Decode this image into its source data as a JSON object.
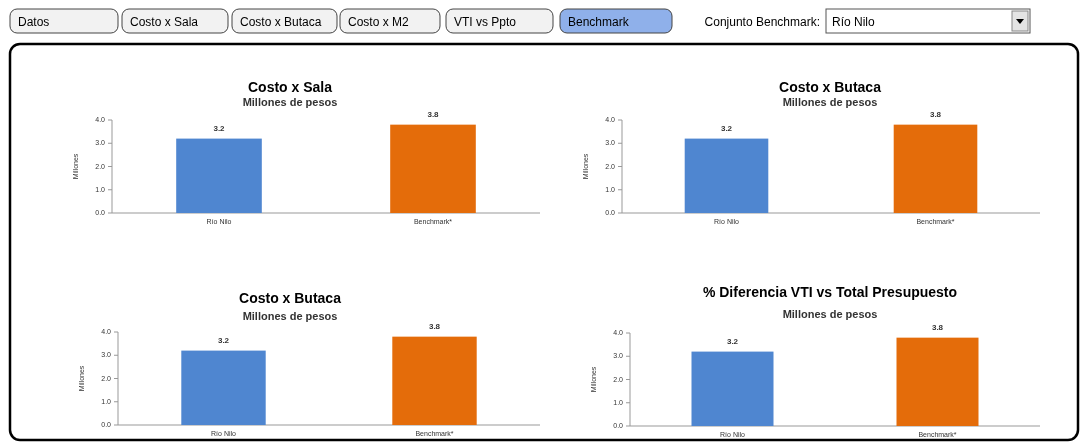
{
  "chart_data": [
    {
      "type": "other",
      "annotations": [
        "Datos",
        "Costo x Sala",
        "Costo x Butaca",
        "Costo x M2",
        "VTI vs Ppto",
        "Benchmark",
        "Conjunto Benchmark:",
        "Río Nilo"
      ]
    },
    {
      "type": "bar",
      "title": "Costo x Sala",
      "subtitle": "Millones de pesos",
      "ylabel": "Millones",
      "categories": [
        "Río Nilo",
        "Benchmark*"
      ],
      "values": [
        3.2,
        3.8
      ],
      "colors": [
        "#4f86d0",
        "#e46c0a"
      ],
      "ylim": [
        0,
        4
      ],
      "yticks": [
        {
          "value": 0,
          "label": "0.0"
        },
        {
          "value": 1,
          "label": "1.0"
        },
        {
          "value": 2,
          "label": "2.0"
        },
        {
          "value": 3,
          "label": "3.0"
        },
        {
          "value": 4,
          "label": "4.0"
        }
      ],
      "data_labels": true
    },
    {
      "type": "bar",
      "title": "Costo x Butaca",
      "subtitle": "Millones de pesos",
      "ylabel": "Millones",
      "categories": [
        "Río Nilo",
        "Benchmark*"
      ],
      "values": [
        3.2,
        3.8
      ],
      "colors": [
        "#4f86d0",
        "#e46c0a"
      ],
      "ylim": [
        0,
        4
      ],
      "yticks": [
        {
          "value": 0,
          "label": "0.0"
        },
        {
          "value": 1,
          "label": "1.0"
        },
        {
          "value": 2,
          "label": "2.0"
        },
        {
          "value": 3,
          "label": "3.0"
        },
        {
          "value": 4,
          "label": "4.0"
        }
      ],
      "data_labels": true
    },
    {
      "type": "bar",
      "title": "Costo x Butaca",
      "subtitle": "Millones de pesos",
      "ylabel": "Millones",
      "categories": [
        "Río Nilo",
        "Benchmark*"
      ],
      "values": [
        3.2,
        3.8
      ],
      "colors": [
        "#4f86d0",
        "#e46c0a"
      ],
      "ylim": [
        0,
        4
      ],
      "yticks": [
        {
          "value": 0,
          "label": "0.0"
        },
        {
          "value": 1,
          "label": "1.0"
        },
        {
          "value": 2,
          "label": "2.0"
        },
        {
          "value": 3,
          "label": "3.0"
        },
        {
          "value": 4,
          "label": "4.0"
        }
      ],
      "data_labels": true
    },
    {
      "type": "bar",
      "title": "% Diferencia VTI vs Total Presupuesto",
      "subtitle": "Millones de pesos",
      "ylabel": "Millones",
      "categories": [
        "Río Nilo",
        "Benchmark*"
      ],
      "values": [
        3.2,
        3.8
      ],
      "colors": [
        "#4f86d0",
        "#e46c0a"
      ],
      "ylim": [
        0,
        4
      ],
      "yticks": [
        {
          "value": 0,
          "label": "0.0"
        },
        {
          "value": 1,
          "label": "1.0"
        },
        {
          "value": 2,
          "label": "2.0"
        },
        {
          "value": 3,
          "label": "3.0"
        },
        {
          "value": 4,
          "label": "4.0"
        }
      ],
      "data_labels": true
    }
  ]
}
